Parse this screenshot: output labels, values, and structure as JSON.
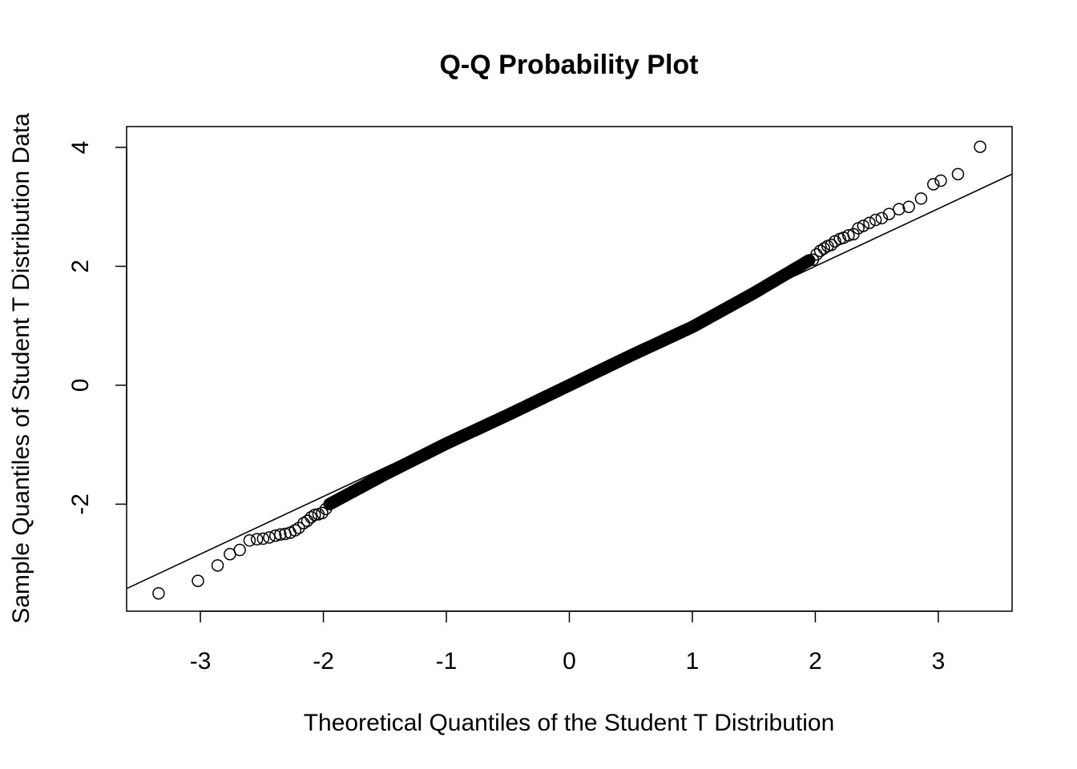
{
  "chart_data": {
    "type": "scatter",
    "title": "Q-Q Probability Plot",
    "xlabel": "Theoretical Quantiles of the Student T Distribution",
    "ylabel": "Sample Quantiles of Student T Distribution Data",
    "xlim": [
      -3.6,
      3.6
    ],
    "ylim": [
      -3.8,
      4.35
    ],
    "grid": false,
    "x_ticks": [
      -3,
      -2,
      -1,
      0,
      1,
      2,
      3
    ],
    "x_tick_labels": [
      "-3",
      "-2",
      "-1",
      "0",
      "1",
      "2",
      "3"
    ],
    "y_ticks": [
      -2,
      0,
      2,
      4
    ],
    "y_tick_labels": [
      "-2",
      "0",
      "2",
      "4"
    ],
    "reference_line": {
      "x": [
        -3.6,
        3.6
      ],
      "y": [
        -3.42,
        3.55
      ]
    },
    "tail_points": [
      [
        -3.34,
        -3.5
      ],
      [
        -3.02,
        -3.29
      ],
      [
        -2.86,
        -3.03
      ],
      [
        -2.76,
        -2.84
      ],
      [
        -2.68,
        -2.77
      ],
      [
        -2.6,
        -2.61
      ],
      [
        -2.54,
        -2.59
      ],
      [
        -2.49,
        -2.58
      ],
      [
        -2.44,
        -2.56
      ],
      [
        -2.39,
        -2.53
      ],
      [
        -2.35,
        -2.51
      ],
      [
        -2.31,
        -2.5
      ],
      [
        -2.27,
        -2.48
      ],
      [
        -2.23,
        -2.44
      ],
      [
        -2.2,
        -2.4
      ],
      [
        -2.16,
        -2.32
      ],
      [
        -2.13,
        -2.28
      ],
      [
        -2.1,
        -2.22
      ],
      [
        -2.07,
        -2.18
      ],
      [
        -2.04,
        -2.17
      ],
      [
        -2.01,
        -2.15
      ],
      [
        -1.98,
        -2.08
      ],
      [
        1.98,
        2.11
      ],
      [
        2.01,
        2.2
      ],
      [
        2.04,
        2.26
      ],
      [
        2.07,
        2.3
      ],
      [
        2.1,
        2.34
      ],
      [
        2.13,
        2.36
      ],
      [
        2.16,
        2.42
      ],
      [
        2.2,
        2.46
      ],
      [
        2.23,
        2.48
      ],
      [
        2.27,
        2.52
      ],
      [
        2.31,
        2.54
      ],
      [
        2.35,
        2.64
      ],
      [
        2.39,
        2.68
      ],
      [
        2.44,
        2.73
      ],
      [
        2.49,
        2.78
      ],
      [
        2.54,
        2.81
      ],
      [
        2.6,
        2.88
      ],
      [
        2.68,
        2.96
      ],
      [
        2.76,
        3.0
      ],
      [
        2.86,
        3.14
      ],
      [
        2.96,
        3.38
      ],
      [
        3.02,
        3.44
      ],
      [
        3.16,
        3.55
      ],
      [
        3.34,
        4.01
      ]
    ],
    "body_curve": {
      "x_range": [
        -1.95,
        1.95
      ],
      "n_points": 560,
      "knots_x": [
        -1.95,
        -1.5,
        -1.0,
        -0.5,
        0.0,
        0.5,
        1.0,
        1.5,
        1.95
      ],
      "knots_y": [
        -2.0,
        -1.5,
        -0.98,
        -0.5,
        0.0,
        0.5,
        0.98,
        1.55,
        2.1
      ]
    }
  }
}
